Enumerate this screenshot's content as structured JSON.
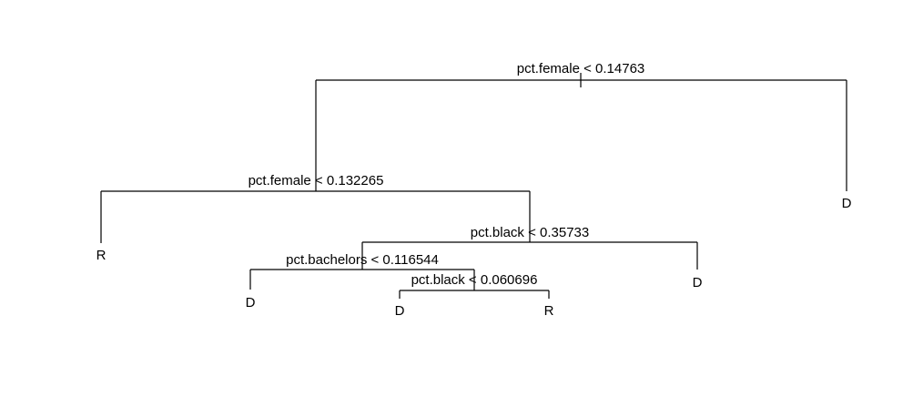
{
  "tree": {
    "splits": [
      {
        "id": "root",
        "label": "pct.female < 0.14763"
      },
      {
        "id": "left1",
        "label": "pct.female < 0.132265"
      },
      {
        "id": "right2",
        "label": "pct.black < 0.35733"
      },
      {
        "id": "left3",
        "label": "pct.bachelors < 0.116544"
      },
      {
        "id": "right4",
        "label": "pct.black < 0.060696"
      }
    ],
    "leaves": [
      {
        "id": "leaf-root-right",
        "label": "D"
      },
      {
        "id": "leaf-left1-left",
        "label": "R"
      },
      {
        "id": "leaf-right2-right",
        "label": "D"
      },
      {
        "id": "leaf-left3-left",
        "label": "D"
      },
      {
        "id": "leaf-right4-left",
        "label": "D"
      },
      {
        "id": "leaf-right4-right",
        "label": "R"
      }
    ]
  }
}
